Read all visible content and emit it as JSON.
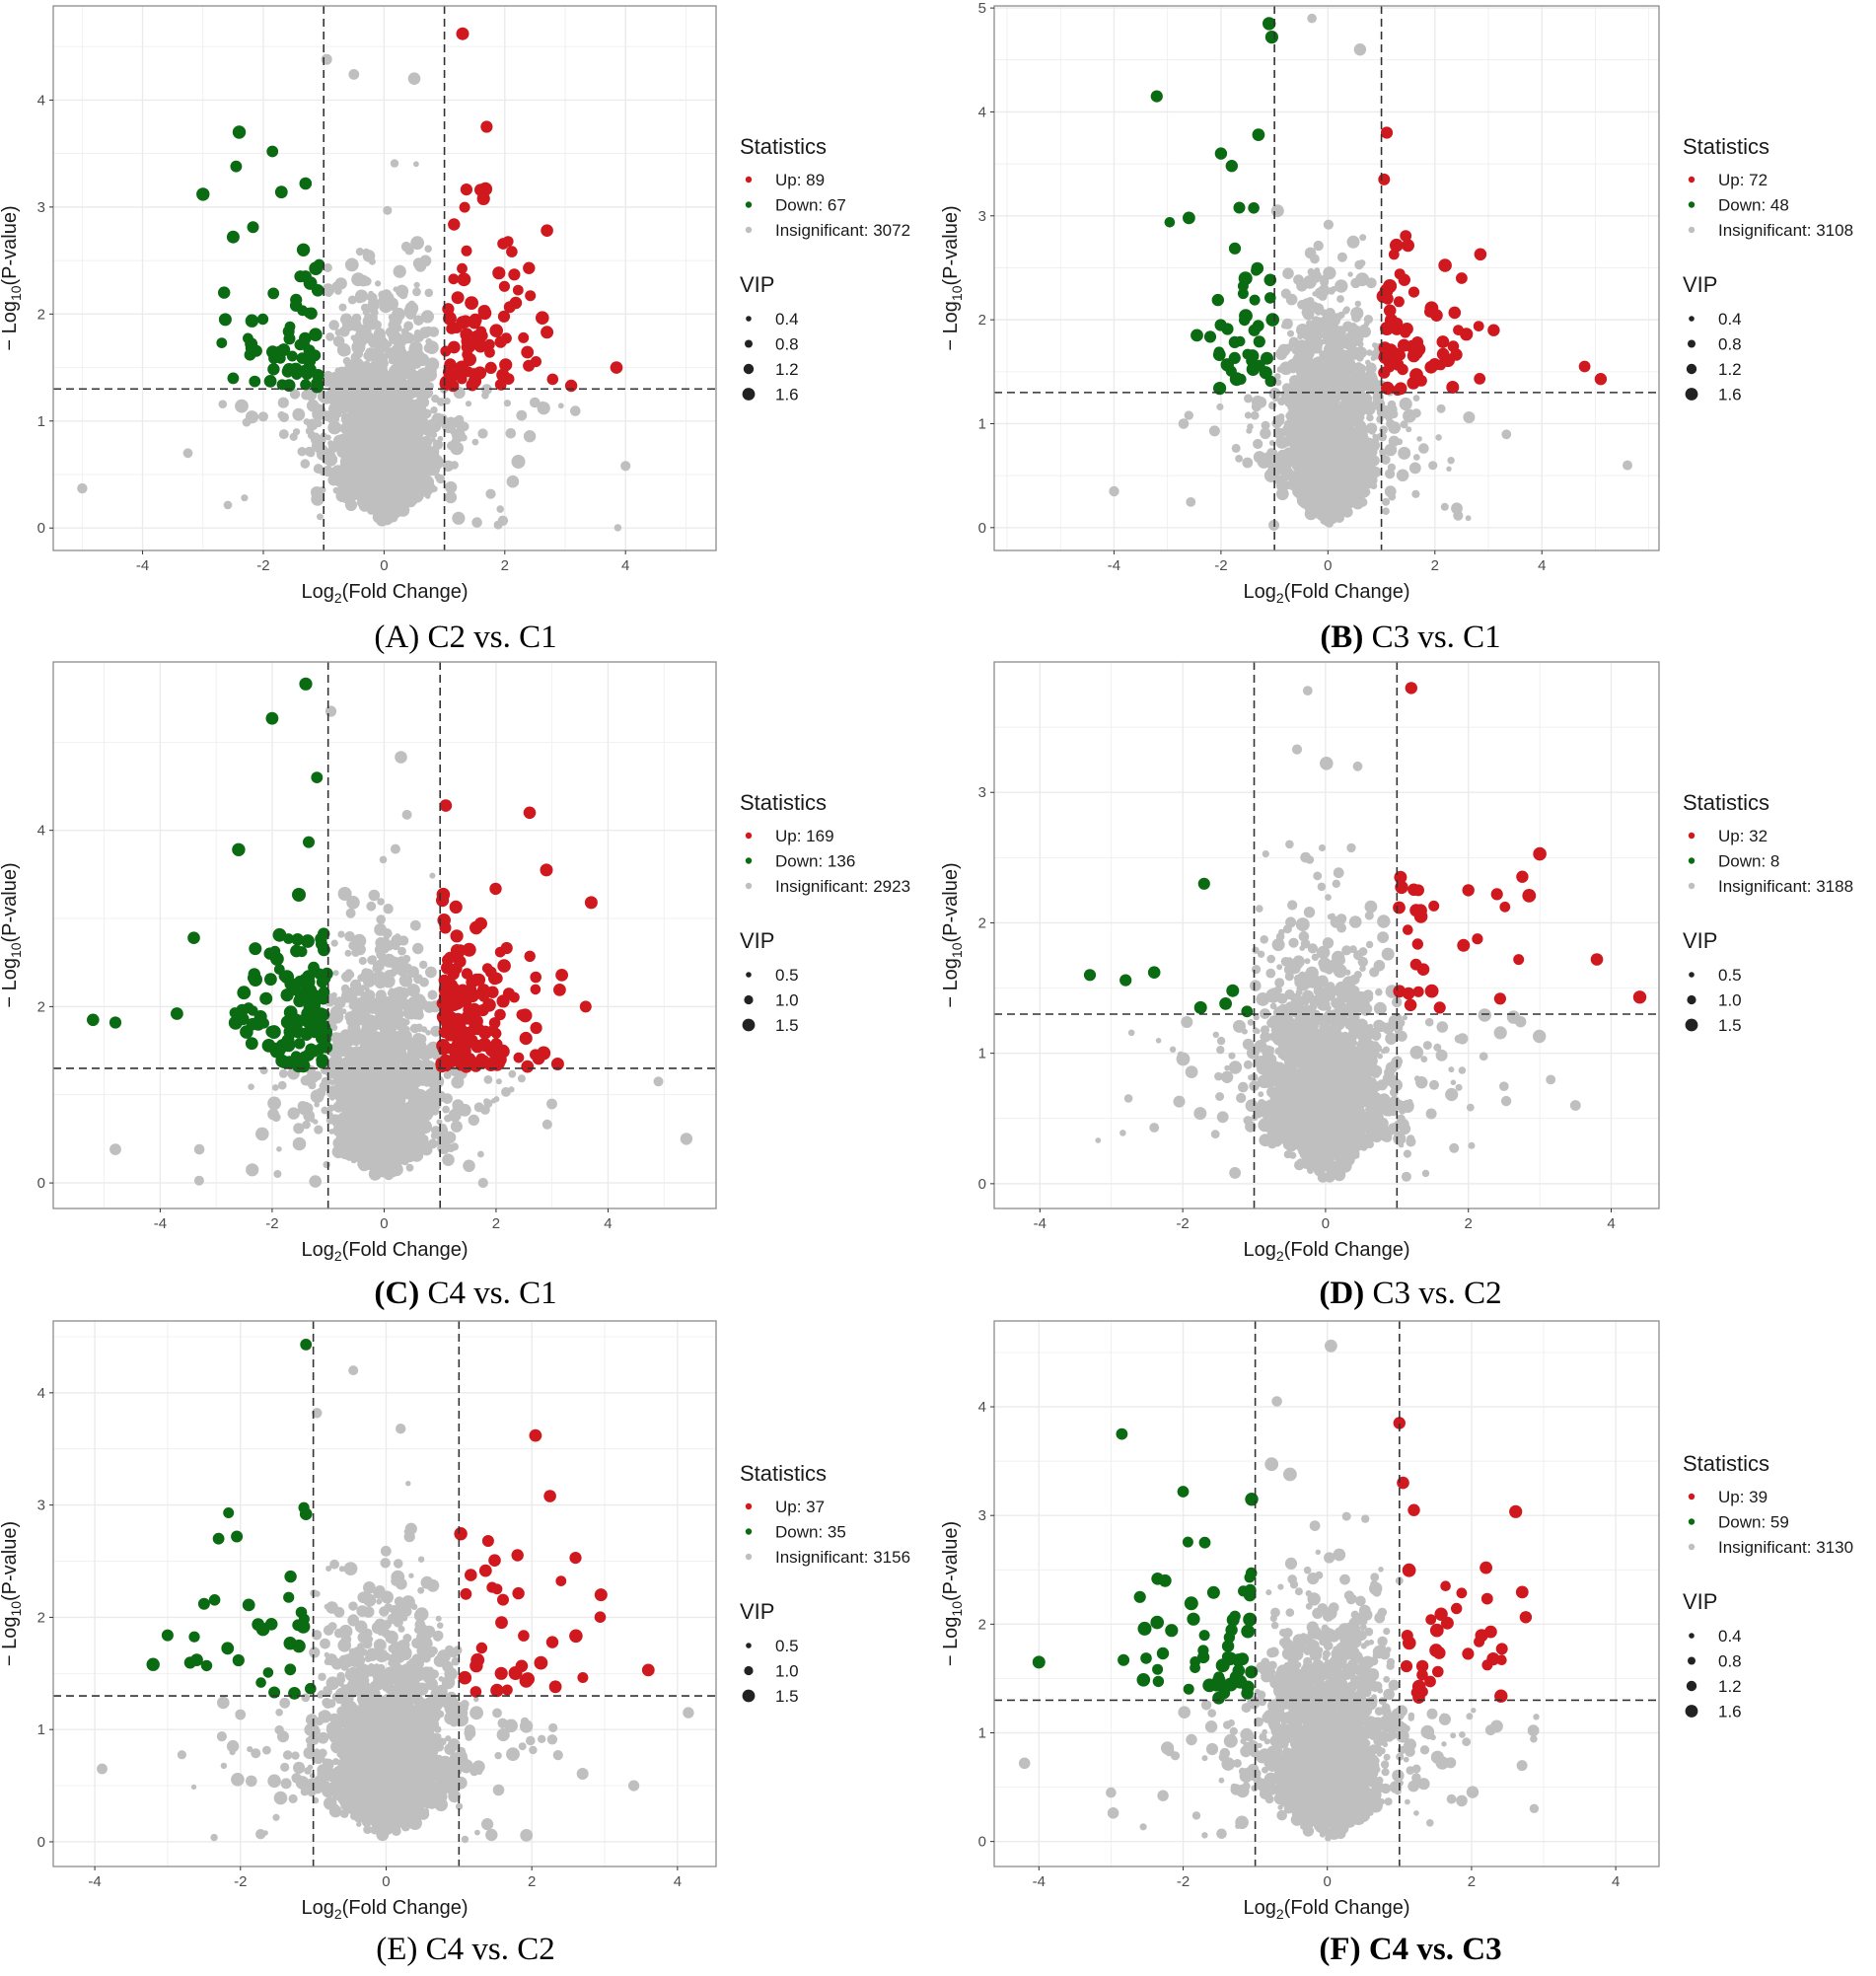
{
  "colors": {
    "up": "#d0191f",
    "down": "#0b6b12",
    "insignificant": "#bfbfbf",
    "grid": "#ebebeb",
    "border": "#8c8c8c",
    "threshold": "#333333"
  },
  "axis_labels": {
    "x_main": "Log",
    "x_sub": "2",
    "x_tail": "(Fold Change)",
    "y_pre": "− Log",
    "y_sub": "10",
    "y_tail": "(P-value)"
  },
  "chart_data": [
    {
      "type": "scatter",
      "letter": "(A)",
      "title": "C2 vs. C1",
      "bold_letter": false,
      "bold_title": false,
      "xlim": [
        -5.48,
        5.5
      ],
      "ylim": [
        -0.21,
        4.88
      ],
      "xticks": [
        -4,
        -2,
        0,
        2,
        4
      ],
      "yticks": [
        0,
        1,
        2,
        3,
        4
      ],
      "thresholds": {
        "log2fc": [
          -1,
          1
        ],
        "neglog10p": 1.3
      },
      "legend": {
        "title": "Statistics",
        "items": [
          {
            "label": "Up: 89",
            "class": "up",
            "count": 89
          },
          {
            "label": "Down: 67",
            "class": "down",
            "count": 67
          },
          {
            "label": "Insignificant: 3072",
            "class": "insignificant",
            "count": 3072
          }
        ]
      },
      "vip": {
        "title": "VIP",
        "values": [
          "0.4",
          "0.8",
          "1.2",
          "1.6"
        ]
      },
      "highlight_points": {
        "up": [
          [
            1.3,
            4.62
          ],
          [
            1.7,
            3.75
          ],
          [
            1.6,
            3.16
          ],
          [
            2.7,
            2.78
          ],
          [
            3.85,
            1.5
          ],
          [
            3.1,
            1.33
          ],
          [
            2.4,
            2.43
          ],
          [
            2.7,
            1.83
          ]
        ],
        "down": [
          [
            -2.4,
            3.7
          ],
          [
            -2.45,
            3.38
          ],
          [
            -3.0,
            3.12
          ],
          [
            -1.85,
            3.52
          ],
          [
            -2.5,
            2.72
          ],
          [
            -2.65,
            2.2
          ],
          [
            -2.2,
            1.72
          ],
          [
            -2.5,
            1.4
          ],
          [
            -1.3,
            3.22
          ],
          [
            -1.7,
            3.14
          ]
        ],
        "insignificant": [
          [
            -5.0,
            0.37
          ],
          [
            -3.25,
            0.7
          ],
          [
            -0.95,
            4.38
          ],
          [
            -0.5,
            4.24
          ],
          [
            0.5,
            4.2
          ],
          [
            4.0,
            0.58
          ]
        ]
      }
    },
    {
      "type": "scatter",
      "letter": "(B)",
      "title": "C3 vs. C1",
      "bold_letter": true,
      "bold_title": false,
      "xlim": [
        -6.24,
        6.19
      ],
      "ylim": [
        -0.22,
        5.02
      ],
      "xticks": [
        -4,
        -2,
        0,
        2,
        4
      ],
      "yticks": [
        0,
        1,
        2,
        3,
        4,
        5
      ],
      "thresholds": {
        "log2fc": [
          -1,
          1
        ],
        "neglog10p": 1.3
      },
      "legend": {
        "title": "Statistics",
        "items": [
          {
            "label": "Up: 72",
            "class": "up",
            "count": 72
          },
          {
            "label": "Down: 48",
            "class": "down",
            "count": 48
          },
          {
            "label": "Insignificant: 3108",
            "class": "insignificant",
            "count": 3108
          }
        ]
      },
      "vip": {
        "title": "VIP",
        "values": [
          "0.4",
          "0.8",
          "1.2",
          "1.6"
        ]
      },
      "highlight_points": {
        "up": [
          [
            1.1,
            3.8
          ],
          [
            1.05,
            3.35
          ],
          [
            4.8,
            1.55
          ],
          [
            5.1,
            1.43
          ],
          [
            2.85,
            2.63
          ],
          [
            3.1,
            1.9
          ],
          [
            2.5,
            2.4
          ]
        ],
        "down": [
          [
            -1.1,
            4.85
          ],
          [
            -1.05,
            4.72
          ],
          [
            -3.2,
            4.15
          ],
          [
            -1.3,
            3.78
          ],
          [
            -2.0,
            3.6
          ],
          [
            -2.6,
            2.98
          ],
          [
            -2.45,
            1.85
          ],
          [
            -1.8,
            3.48
          ]
        ],
        "insignificant": [
          [
            -0.3,
            4.9
          ],
          [
            5.6,
            0.6
          ],
          [
            -4.0,
            0.35
          ],
          [
            0.6,
            4.6
          ],
          [
            -2.7,
            1.0
          ]
        ]
      }
    },
    {
      "type": "scatter",
      "letter": "(C)",
      "title": "C4 vs. C1",
      "bold_letter": true,
      "bold_title": false,
      "xlim": [
        -5.91,
        5.93
      ],
      "ylim": [
        -0.29,
        5.91
      ],
      "xticks": [
        -4,
        -2,
        0,
        2,
        4
      ],
      "yticks": [
        0,
        2,
        4
      ],
      "thresholds": {
        "log2fc": [
          -1,
          1
        ],
        "neglog10p": 1.3
      },
      "legend": {
        "title": "Statistics",
        "items": [
          {
            "label": "Up: 169",
            "class": "up",
            "count": 169
          },
          {
            "label": "Down: 136",
            "class": "down",
            "count": 136
          },
          {
            "label": "Insignificant: 2923",
            "class": "insignificant",
            "count": 2923
          }
        ]
      },
      "vip": {
        "title": "VIP",
        "values": [
          "0.5",
          "1.0",
          "1.5"
        ]
      },
      "highlight_points": {
        "up": [
          [
            2.6,
            4.2
          ],
          [
            3.7,
            3.18
          ],
          [
            2.9,
            3.55
          ],
          [
            3.6,
            2.0
          ],
          [
            1.1,
            4.28
          ],
          [
            3.1,
            1.35
          ]
        ],
        "down": [
          [
            -1.4,
            5.66
          ],
          [
            -2.0,
            5.27
          ],
          [
            -5.2,
            1.85
          ],
          [
            -4.8,
            1.82
          ],
          [
            -3.7,
            1.92
          ],
          [
            -3.4,
            2.78
          ],
          [
            -2.6,
            3.78
          ],
          [
            -1.2,
            4.6
          ]
        ],
        "insignificant": [
          [
            -0.95,
            5.35
          ],
          [
            0.3,
            4.83
          ],
          [
            5.4,
            0.5
          ],
          [
            4.9,
            1.15
          ],
          [
            -4.8,
            0.38
          ],
          [
            -3.3,
            0.38
          ]
        ]
      }
    },
    {
      "type": "scatter",
      "letter": "(D)",
      "title": "C3 vs. C2",
      "bold_letter": true,
      "bold_title": false,
      "xlim": [
        -4.64,
        4.67
      ],
      "ylim": [
        -0.19,
        4.0
      ],
      "xticks": [
        -4,
        -2,
        0,
        2,
        4
      ],
      "yticks": [
        0,
        1,
        2,
        3
      ],
      "thresholds": {
        "log2fc": [
          -1,
          1
        ],
        "neglog10p": 1.3
      },
      "legend": {
        "title": "Statistics",
        "items": [
          {
            "label": "Up: 32",
            "class": "up",
            "count": 32
          },
          {
            "label": "Down: 8",
            "class": "down",
            "count": 8
          },
          {
            "label": "Insignificant: 3188",
            "class": "insignificant",
            "count": 3188
          }
        ]
      },
      "vip": {
        "title": "VIP",
        "values": [
          "0.5",
          "1.0",
          "1.5"
        ]
      },
      "highlight_points": {
        "up": [
          [
            1.2,
            3.8
          ],
          [
            4.4,
            1.43
          ],
          [
            3.8,
            1.72
          ],
          [
            2.4,
            2.22
          ],
          [
            2.0,
            2.25
          ],
          [
            1.3,
            2.25
          ],
          [
            1.05,
            2.35
          ],
          [
            1.6,
            1.35
          ]
        ],
        "down": [
          [
            -1.7,
            2.3
          ],
          [
            -3.3,
            1.6
          ],
          [
            -2.8,
            1.56
          ],
          [
            -2.4,
            1.62
          ],
          [
            -1.3,
            1.48
          ],
          [
            -1.4,
            1.38
          ],
          [
            -1.75,
            1.35
          ],
          [
            -1.1,
            1.32
          ]
        ],
        "insignificant": [
          [
            -0.25,
            3.78
          ],
          [
            -0.4,
            3.33
          ],
          [
            0.45,
            3.2
          ],
          [
            3.5,
            0.6
          ],
          [
            -2.4,
            0.43
          ],
          [
            -2.05,
            0.63
          ]
        ]
      }
    },
    {
      "type": "scatter",
      "letter": "(E)",
      "title": "C4 vs. C2",
      "bold_letter": false,
      "bold_title": false,
      "xlim": [
        -4.57,
        4.53
      ],
      "ylim": [
        -0.22,
        4.64
      ],
      "xticks": [
        -4,
        -2,
        0,
        2,
        4
      ],
      "yticks": [
        0,
        1,
        2,
        3,
        4
      ],
      "thresholds": {
        "log2fc": [
          -1,
          1
        ],
        "neglog10p": 1.3
      },
      "legend": {
        "title": "Statistics",
        "items": [
          {
            "label": "Up: 37",
            "class": "up",
            "count": 37
          },
          {
            "label": "Down: 35",
            "class": "down",
            "count": 35
          },
          {
            "label": "Insignificant: 3156",
            "class": "insignificant",
            "count": 3156
          }
        ]
      },
      "vip": {
        "title": "VIP",
        "values": [
          "0.5",
          "1.0",
          "1.5"
        ]
      },
      "highlight_points": {
        "up": [
          [
            2.05,
            3.62
          ],
          [
            2.25,
            3.08
          ],
          [
            3.6,
            1.53
          ],
          [
            2.95,
            2.2
          ],
          [
            2.6,
            2.53
          ],
          [
            1.4,
            2.68
          ]
        ],
        "down": [
          [
            -1.1,
            4.43
          ],
          [
            -1.1,
            2.92
          ],
          [
            -2.3,
            2.7
          ],
          [
            -3.2,
            1.58
          ],
          [
            -3.0,
            1.84
          ],
          [
            -2.5,
            2.12
          ],
          [
            -2.6,
            1.62
          ]
        ],
        "insignificant": [
          [
            -0.45,
            4.2
          ],
          [
            -0.95,
            3.82
          ],
          [
            0.2,
            3.68
          ],
          [
            -3.9,
            0.65
          ],
          [
            4.15,
            1.15
          ],
          [
            3.4,
            0.5
          ]
        ]
      }
    },
    {
      "type": "scatter",
      "letter": "(F)",
      "title": "C4 vs. C3",
      "bold_letter": true,
      "bold_title": true,
      "xlim": [
        -4.62,
        4.6
      ],
      "ylim": [
        -0.23,
        4.79
      ],
      "xticks": [
        -4,
        -2,
        0,
        2,
        4
      ],
      "yticks": [
        0,
        1,
        2,
        3,
        4
      ],
      "thresholds": {
        "log2fc": [
          -1,
          1
        ],
        "neglog10p": 1.3
      },
      "legend": {
        "title": "Statistics",
        "items": [
          {
            "label": "Up: 39",
            "class": "up",
            "count": 39
          },
          {
            "label": "Down: 59",
            "class": "down",
            "count": 59
          },
          {
            "label": "Insignificant: 3130",
            "class": "insignificant",
            "count": 3130
          }
        ]
      },
      "vip": {
        "title": "VIP",
        "values": [
          "0.4",
          "0.8",
          "1.2",
          "1.6"
        ]
      },
      "highlight_points": {
        "up": [
          [
            1.0,
            3.85
          ],
          [
            1.05,
            3.3
          ],
          [
            2.2,
            2.52
          ],
          [
            2.3,
            1.68
          ],
          [
            1.2,
            3.05
          ]
        ],
        "down": [
          [
            -2.85,
            3.75
          ],
          [
            -4.0,
            1.65
          ],
          [
            -2.0,
            3.22
          ],
          [
            -1.05,
            3.15
          ],
          [
            -2.6,
            2.25
          ],
          [
            -2.25,
            2.4
          ],
          [
            -1.7,
            2.75
          ]
        ],
        "insignificant": [
          [
            0.05,
            4.56
          ],
          [
            -0.7,
            4.05
          ],
          [
            -4.2,
            0.72
          ],
          [
            -3.0,
            0.45
          ],
          [
            2.7,
            0.7
          ],
          [
            2.35,
            1.06
          ]
        ]
      }
    }
  ]
}
